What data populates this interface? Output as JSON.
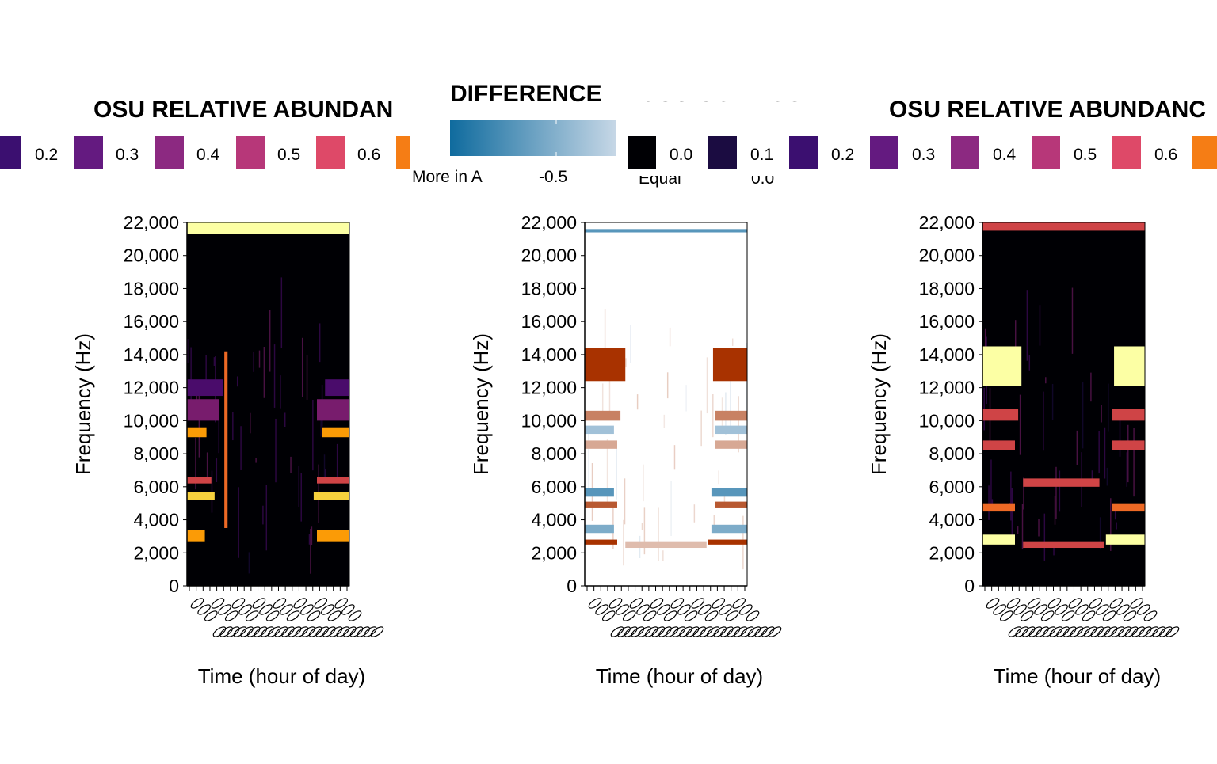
{
  "chart_data": [
    {
      "type": "heatmap",
      "legend_title": "OSU RELATIVE ABUNDAN",
      "legend_position": "top",
      "legend_entries": [
        "0.2",
        "0.3",
        "0.4",
        "0.5",
        "0.6"
      ],
      "colors": [
        "#3b0f70",
        "#641a80",
        "#8c2981",
        "#b73779",
        "#de4968",
        "#e65d2f",
        "#f57d15",
        "#fcffa4",
        "#000004",
        "#1b0c41"
      ],
      "xlabel": "Time (hour of day)",
      "ylabel": "Frequency (Hz)",
      "ylim": [
        0,
        22000
      ],
      "y_ticks": [
        "0",
        "2,000",
        "4,000",
        "6,000",
        "8,000",
        "10,000",
        "12,000",
        "14,000",
        "16,000",
        "18,000",
        "20,000",
        "22,000"
      ],
      "bands": [
        {
          "y": [
            21300,
            22000
          ],
          "value": 1.0
        },
        {
          "y": [
            2700,
            3400
          ],
          "value": 0.8,
          "x_segments": [
            [
              0,
              0.11
            ],
            [
              0.8,
              1
            ]
          ]
        },
        {
          "y": [
            5200,
            5700
          ],
          "value": 0.9,
          "x_segments": [
            [
              0,
              0.17
            ],
            [
              0.78,
              1
            ]
          ]
        },
        {
          "y": [
            6200,
            6600
          ],
          "value": 0.5,
          "x_segments": [
            [
              0,
              0.15
            ],
            [
              0.8,
              1
            ]
          ]
        },
        {
          "y": [
            9000,
            9600
          ],
          "value": 0.8,
          "x_segments": [
            [
              0,
              0.12
            ],
            [
              0.83,
              1
            ]
          ]
        },
        {
          "y": [
            10000,
            11300
          ],
          "value": 0.3,
          "x_segments": [
            [
              0,
              0.2
            ],
            [
              0.8,
              1
            ]
          ]
        },
        {
          "y": [
            11500,
            12500
          ],
          "value": 0.2,
          "x_segments": [
            [
              0,
              0.22
            ],
            [
              0.85,
              1
            ]
          ]
        },
        {
          "y": [
            3500,
            14200
          ],
          "value": 0.7,
          "x_segments": [
            [
              0.23,
              0.25
            ]
          ]
        }
      ]
    },
    {
      "type": "heatmap",
      "legend_title": "DIFFERENCE IN OSU COMPOSI",
      "legend_position": "top",
      "legend_labels": [
        "More in A",
        "-0.5",
        "Equal",
        "0.0"
      ],
      "colors": [
        "#0f6b9e",
        "#c6d7e6",
        "#f7f7f7",
        "#a83200"
      ],
      "xlabel": "Time (hour of day)",
      "ylabel": "Frequency (Hz)",
      "ylim": [
        0,
        22000
      ],
      "y_ticks": [
        "0",
        "2,000",
        "4,000",
        "6,000",
        "8,000",
        "10,000",
        "12,000",
        "14,000",
        "16,000",
        "18,000",
        "20,000",
        "22,000"
      ],
      "bands": [
        {
          "y": [
            21400,
            21600
          ],
          "value": -0.8
        },
        {
          "y": [
            12400,
            14400
          ],
          "value": 1.0,
          "x_segments": [
            [
              0,
              0.25
            ],
            [
              0.79,
              1
            ]
          ]
        },
        {
          "y": [
            2500,
            2800
          ],
          "value": 1.0,
          "x_segments": [
            [
              0,
              0.2
            ],
            [
              0.76,
              1
            ]
          ]
        },
        {
          "y": [
            3200,
            3700
          ],
          "value": -0.7,
          "x_segments": [
            [
              0,
              0.18
            ],
            [
              0.78,
              1
            ]
          ]
        },
        {
          "y": [
            4700,
            5100
          ],
          "value": 0.8,
          "x_segments": [
            [
              0,
              0.2
            ],
            [
              0.8,
              1
            ]
          ]
        },
        {
          "y": [
            5400,
            5900
          ],
          "value": -0.8,
          "x_segments": [
            [
              0,
              0.18
            ],
            [
              0.78,
              1
            ]
          ]
        },
        {
          "y": [
            9200,
            9700
          ],
          "value": -0.6,
          "x_segments": [
            [
              0,
              0.18
            ],
            [
              0.8,
              1
            ]
          ]
        },
        {
          "y": [
            10000,
            10600
          ],
          "value": 0.6,
          "x_segments": [
            [
              0,
              0.22
            ],
            [
              0.8,
              1
            ]
          ]
        },
        {
          "y": [
            8300,
            8800
          ],
          "value": 0.4,
          "x_segments": [
            [
              0,
              0.2
            ],
            [
              0.8,
              1
            ]
          ]
        },
        {
          "y": [
            2300,
            2700
          ],
          "value": 0.3,
          "x_segments": [
            [
              0.25,
              0.75
            ]
          ]
        }
      ]
    },
    {
      "type": "heatmap",
      "legend_title": "OSU RELATIVE ABUNDANC",
      "legend_position": "top",
      "legend_entries": [
        "0.0",
        "0.1",
        "0.2",
        "0.3",
        "0.4",
        "0.5",
        "0.6"
      ],
      "colors": [
        "#000004",
        "#1b0c41",
        "#3b0f70",
        "#641a80",
        "#8c2981",
        "#b73779",
        "#de4968",
        "#f57d15",
        "#fcffa4"
      ],
      "xlabel": "Time (hour of day)",
      "ylabel": "Frequency (Hz)",
      "ylim": [
        0,
        22000
      ],
      "y_ticks": [
        "0",
        "2,000",
        "4,000",
        "6,000",
        "8,000",
        "10,000",
        "12,000",
        "14,000",
        "16,000",
        "18,000",
        "20,000",
        "22,000"
      ],
      "bands": [
        {
          "y": [
            21500,
            22000
          ],
          "value": 0.6
        },
        {
          "y": [
            12100,
            14500
          ],
          "value": 1.0,
          "x_segments": [
            [
              0,
              0.24
            ],
            [
              0.81,
              1
            ]
          ]
        },
        {
          "y": [
            2500,
            3100
          ],
          "value": 1.0,
          "x_segments": [
            [
              0,
              0.2
            ],
            [
              0.76,
              1
            ]
          ]
        },
        {
          "y": [
            4500,
            5000
          ],
          "value": 0.7,
          "x_segments": [
            [
              0,
              0.2
            ],
            [
              0.8,
              1
            ]
          ]
        },
        {
          "y": [
            8200,
            8800
          ],
          "value": 0.6,
          "x_segments": [
            [
              0,
              0.2
            ],
            [
              0.8,
              1
            ]
          ]
        },
        {
          "y": [
            10000,
            10700
          ],
          "value": 0.6,
          "x_segments": [
            [
              0,
              0.22
            ],
            [
              0.8,
              1
            ]
          ]
        },
        {
          "y": [
            2300,
            2700
          ],
          "value": 0.5,
          "x_segments": [
            [
              0.25,
              0.75
            ]
          ]
        },
        {
          "y": [
            6000,
            6500
          ],
          "value": 0.5,
          "x_segments": [
            [
              0.25,
              0.72
            ]
          ]
        }
      ]
    }
  ]
}
